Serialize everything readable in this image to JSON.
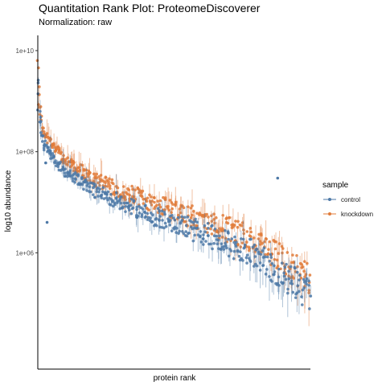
{
  "chart_data": {
    "type": "scatter",
    "title": "Quantitation Rank Plot: ProteomeDiscoverer",
    "subtitle": "Normalization: raw",
    "xlabel": "protein rank",
    "ylabel": "log10 abundance",
    "y_scale": "log10",
    "ylim": [
      5000,
      20000000000
    ],
    "y_ticks": [
      10000000000,
      100000000,
      1000000
    ],
    "y_tick_labels": [
      "1e+10",
      "1e+08",
      "1e+06"
    ],
    "x_ticks": [],
    "grid": false,
    "legend": {
      "title": "sample",
      "position": "right"
    },
    "colors": {
      "control": "#4E79A7",
      "knockdown": "#E07B39"
    },
    "series": [
      {
        "name": "control",
        "x": [
          1,
          5,
          20,
          50,
          100,
          200,
          400,
          600,
          800,
          1000
        ],
        "y": [
          3000000000,
          600000000,
          150000000,
          80000000,
          40000000,
          18000000,
          6000000,
          2500000,
          900000,
          150000
        ]
      },
      {
        "name": "knockdown",
        "x": [
          1,
          5,
          20,
          50,
          100,
          200,
          400,
          600,
          800,
          1000
        ],
        "y": [
          6000000000,
          900000000,
          250000000,
          140000000,
          70000000,
          30000000,
          11000000,
          4500000,
          1800000,
          300000
        ]
      }
    ],
    "outliers": [
      {
        "series": "control",
        "x": 35,
        "y": 4000000
      },
      {
        "series": "control",
        "x": 30,
        "y": 60000000
      },
      {
        "series": "control",
        "x": 880,
        "y": 30000000
      }
    ],
    "x_max": 1000
  }
}
